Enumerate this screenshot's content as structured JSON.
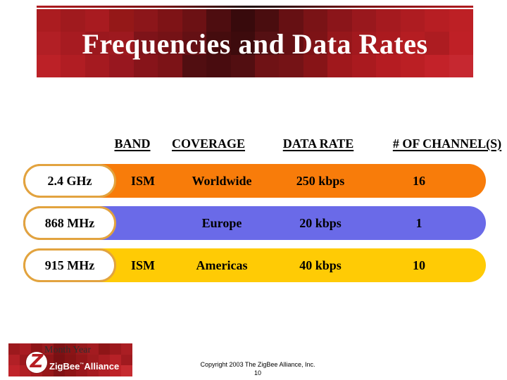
{
  "slide": {
    "title": "Frequencies and Data Rates",
    "footer": {
      "month_year_placeholder": "Month Year",
      "copyright": "Copyright 2003  The ZigBee Alliance, Inc.",
      "page_number": "10"
    },
    "logo": {
      "letter": "Z",
      "brand_first": "ZigBee",
      "trademark": "™",
      "brand_second": "Alliance"
    }
  },
  "table": {
    "headers": {
      "band": "BAND",
      "coverage": "COVERAGE",
      "data_rate": "DATA RATE",
      "channels": "# OF CHANNEL(S)"
    },
    "rows": [
      {
        "frequency": "2.4 GHz",
        "band": "ISM",
        "coverage": "Worldwide",
        "data_rate": "250 kbps",
        "channels": "16",
        "bar_color": "#f87c0a"
      },
      {
        "frequency": "868 MHz",
        "band": "",
        "coverage": "Europe",
        "data_rate": "20 kbps",
        "channels": "1",
        "bar_color": "#6a6ae8"
      },
      {
        "frequency": "915 MHz",
        "band": "ISM",
        "coverage": "Americas",
        "data_rate": "40 kbps",
        "channels": "10",
        "bar_color": "#ffcb05"
      }
    ]
  },
  "colors": {
    "pill_border": "#e2a33f",
    "pill_fill": "#ffffff",
    "title_text": "#ffffff",
    "body_text": "#000000",
    "logo_z_red": "#b61d22",
    "top_line_edge": "#b01c20",
    "top_line_center": "#1e0506"
  },
  "banner_mosaic": [
    [
      "#ab1c20",
      "#a01a1e",
      "#a81b20",
      "#951818",
      "#8c161a",
      "#7e1316",
      "#6c1114",
      "#4e0d10",
      "#380a0c",
      "#4a0d0f",
      "#661013",
      "#7a1316",
      "#8b151a",
      "#99181d",
      "#a51a1f",
      "#ae1c21",
      "#b71e23",
      "#bd2025"
    ],
    [
      "#b21f25",
      "#a71b21",
      "#9b181e",
      "#9d191f",
      "#7e1319",
      "#751216",
      "#641014",
      "#450c0e",
      "#3d0b0d",
      "#551013",
      "#651013",
      "#7d1316",
      "#96171b",
      "#a2191e",
      "#ab1a1f",
      "#b51d22",
      "#ad1c21",
      "#bf2026"
    ],
    [
      "#bc2127",
      "#b11d23",
      "#a51a20",
      "#98171f",
      "#87141a",
      "#7c1317",
      "#510e11",
      "#490c0f",
      "#520e11",
      "#6f1215",
      "#751316",
      "#871417",
      "#a0181c",
      "#aa1a1f",
      "#b51c22",
      "#bb1f24",
      "#c32229",
      "#c62830"
    ]
  ],
  "logo_mosaic": [
    [
      "#9c191d",
      "#a81c22",
      "#8e1518",
      "#991a1e",
      "#7e1114",
      "#8a1416",
      "#961a1d",
      "#a31b20",
      "#8e1517",
      "#9c191d",
      "#aa1e23"
    ],
    [
      "#b22026",
      "#9c181d",
      "#a81c21",
      "#8e1518",
      "#7a1013",
      "#861315",
      "#921619",
      "#9e1a1e",
      "#aa1d22",
      "#b62127",
      "#a01a1f"
    ],
    [
      "#c0232a",
      "#b01f24",
      "#a41b20",
      "#961719",
      "#821215",
      "#8e1517",
      "#9a181d",
      "#a61c21",
      "#b22026",
      "#be2228",
      "#c62b30"
    ]
  ]
}
